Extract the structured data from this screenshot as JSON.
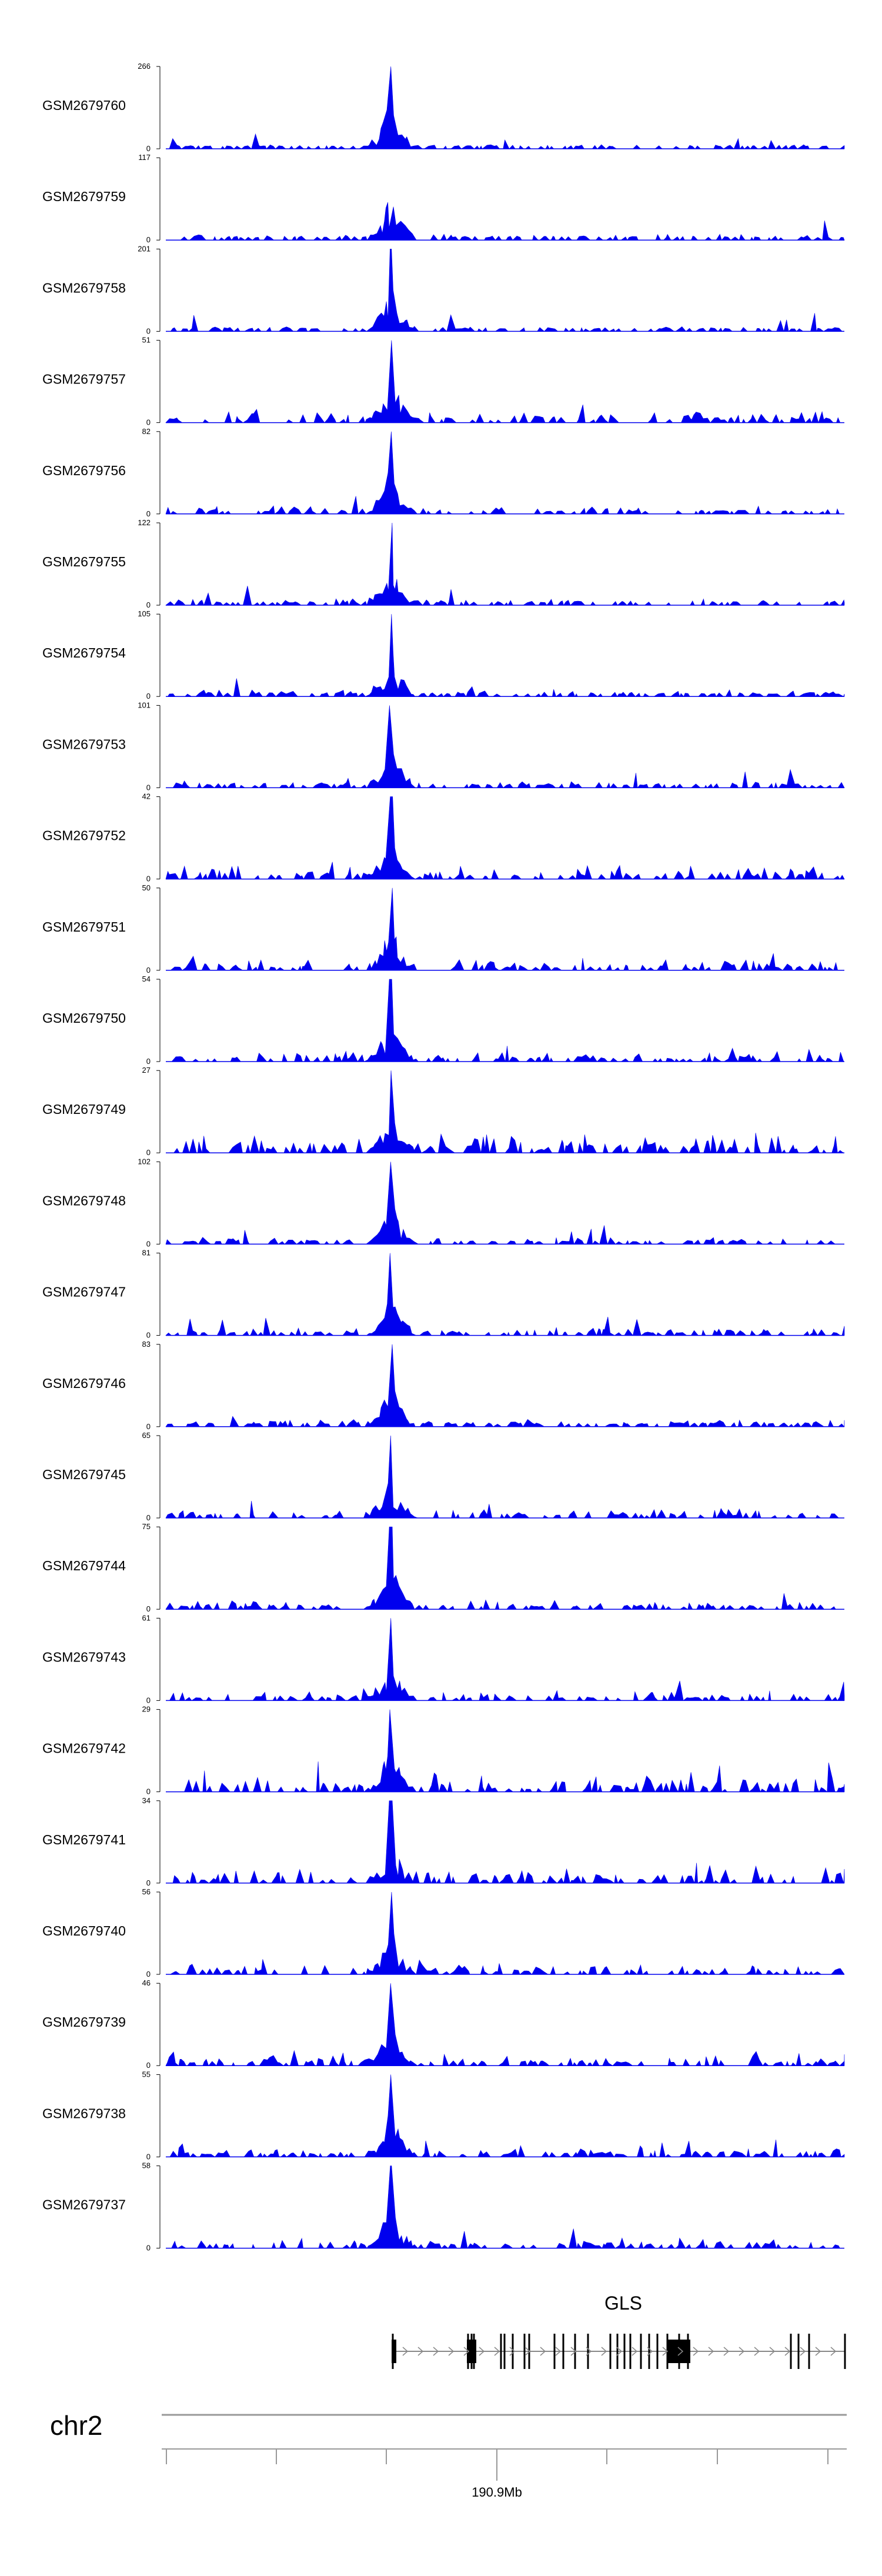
{
  "chart_data": {
    "type": "area",
    "color": "#0000ee",
    "tracks": [
      {
        "name": "GSM2679760",
        "ymax": "266",
        "ymin": "0",
        "max": 266
      },
      {
        "name": "GSM2679759",
        "ymax": "117",
        "ymin": "0",
        "max": 117
      },
      {
        "name": "GSM2679758",
        "ymax": "201",
        "ymin": "0",
        "max": 201
      },
      {
        "name": "GSM2679757",
        "ymax": "51",
        "ymin": "0",
        "max": 51
      },
      {
        "name": "GSM2679756",
        "ymax": "82",
        "ymin": "0",
        "max": 82
      },
      {
        "name": "GSM2679755",
        "ymax": "122",
        "ymin": "0",
        "max": 122
      },
      {
        "name": "GSM2679754",
        "ymax": "105",
        "ymin": "0",
        "max": 105
      },
      {
        "name": "GSM2679753",
        "ymax": "101",
        "ymin": "0",
        "max": 101
      },
      {
        "name": "GSM2679752",
        "ymax": "42",
        "ymin": "0",
        "max": 42
      },
      {
        "name": "GSM2679751",
        "ymax": "50",
        "ymin": "0",
        "max": 50
      },
      {
        "name": "GSM2679750",
        "ymax": "54",
        "ymin": "0",
        "max": 54
      },
      {
        "name": "GSM2679749",
        "ymax": "27",
        "ymin": "0",
        "max": 27
      },
      {
        "name": "GSM2679748",
        "ymax": "102",
        "ymin": "0",
        "max": 102
      },
      {
        "name": "GSM2679747",
        "ymax": "81",
        "ymin": "0",
        "max": 81
      },
      {
        "name": "GSM2679746",
        "ymax": "83",
        "ymin": "0",
        "max": 83
      },
      {
        "name": "GSM2679745",
        "ymax": "65",
        "ymin": "0",
        "max": 65
      },
      {
        "name": "GSM2679744",
        "ymax": "75",
        "ymin": "0",
        "max": 75
      },
      {
        "name": "GSM2679743",
        "ymax": "61",
        "ymin": "0",
        "max": 61
      },
      {
        "name": "GSM2679742",
        "ymax": "29",
        "ymin": "0",
        "max": 29
      },
      {
        "name": "GSM2679741",
        "ymax": "34",
        "ymin": "0",
        "max": 34
      },
      {
        "name": "GSM2679740",
        "ymax": "56",
        "ymin": "0",
        "max": 56
      },
      {
        "name": "GSM2679739",
        "ymax": "46",
        "ymin": "0",
        "max": 46
      },
      {
        "name": "GSM2679738",
        "ymax": "55",
        "ymin": "0",
        "max": 55
      },
      {
        "name": "GSM2679737",
        "ymax": "58",
        "ymin": "0",
        "max": 58
      }
    ],
    "gene": {
      "name": "GLS",
      "strand": "+"
    },
    "chromosome": "chr2",
    "axis_label": "190.9Mb"
  }
}
